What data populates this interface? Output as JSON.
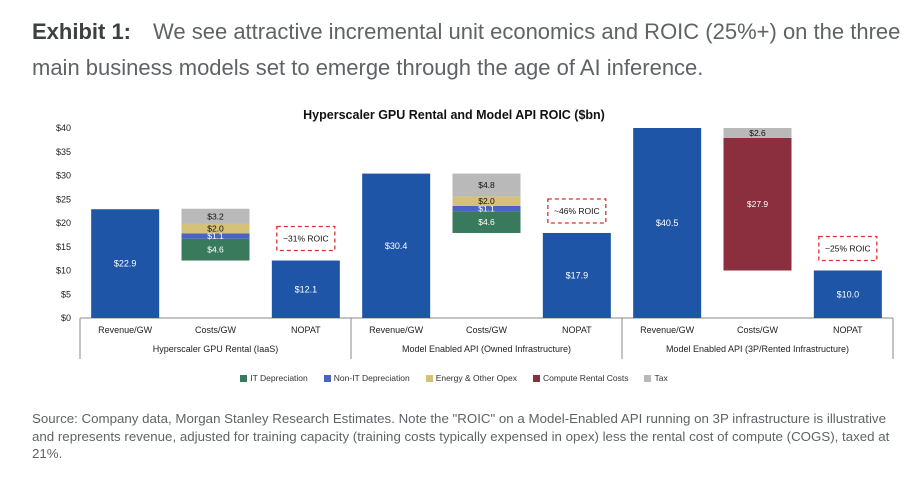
{
  "header": {
    "exhibit_label": "Exhibit 1:",
    "exhibit_text": "We see attractive incremental unit economics and ROIC (25%+) on the three main business models set to emerge through the age of AI inference."
  },
  "source_note": "Source: Company data, Morgan Stanley Research Estimates. Note the \"ROIC\" on a Model-Enabled API running on 3P infrastructure is illustrative and represents revenue, adjusted for training capacity (training costs typically expensed in opex) less the rental cost of compute (COGS), taxed at 21%.",
  "colors": {
    "blue": "#1f55a6",
    "it_depreciation": "#3a7a5c",
    "non_it_depreciation": "#4a63c4",
    "energy_opex": "#d4c17a",
    "compute_rental": "#8b2e3d",
    "tax": "#b9b9b9",
    "roic_box": "#d9342b"
  },
  "chart_data": {
    "type": "bar",
    "title": "Hyperscaler GPU Rental and Model API ROIC ($bn)",
    "ylim": [
      0,
      40
    ],
    "yticks": [
      "$0",
      "$5",
      "$10",
      "$15",
      "$20",
      "$25",
      "$30",
      "$35",
      "$40"
    ],
    "legend_position": "bottom",
    "legend": [
      {
        "name": "IT Depreciation",
        "color": "#3a7a5c"
      },
      {
        "name": "Non-IT Depreciation",
        "color": "#4a63c4"
      },
      {
        "name": "Energy & Other Opex",
        "color": "#d4c17a"
      },
      {
        "name": "Compute Rental Costs",
        "color": "#8b2e3d"
      },
      {
        "name": "Tax",
        "color": "#b9b9b9"
      }
    ],
    "groups": [
      {
        "name": "Hyperscaler GPU Rental (IaaS)",
        "roic_label": "~31% ROIC",
        "bars": [
          {
            "label": "Revenue/GW",
            "kind": "single",
            "value": 22.9,
            "value_label": "$22.9"
          },
          {
            "label": "Costs/GW",
            "kind": "stack",
            "base": 12.1,
            "segments": [
              {
                "name": "IT Depreciation",
                "value": 4.6,
                "value_label": "$4.6"
              },
              {
                "name": "Non-IT Depreciation",
                "value": 1.1,
                "value_label": "$1.1"
              },
              {
                "name": "Energy & Other Opex",
                "value": 2.0,
                "value_label": "$2.0"
              },
              {
                "name": "Tax",
                "value": 3.2,
                "value_label": "$3.2"
              }
            ]
          },
          {
            "label": "NOPAT",
            "kind": "single",
            "value": 12.1,
            "value_label": "$12.1"
          }
        ]
      },
      {
        "name": "Model Enabled API (Owned Infrastructure)",
        "roic_label": "~46% ROIC",
        "bars": [
          {
            "label": "Revenue/GW",
            "kind": "single",
            "value": 30.4,
            "value_label": "$30.4"
          },
          {
            "label": "Costs/GW",
            "kind": "stack",
            "base": 17.9,
            "segments": [
              {
                "name": "IT Depreciation",
                "value": 4.6,
                "value_label": "$4.6"
              },
              {
                "name": "Non-IT Depreciation",
                "value": 1.1,
                "value_label": "$1.1"
              },
              {
                "name": "Energy & Other Opex",
                "value": 2.0,
                "value_label": "$2.0"
              },
              {
                "name": "Tax",
                "value": 4.8,
                "value_label": "$4.8"
              }
            ]
          },
          {
            "label": "NOPAT",
            "kind": "single",
            "value": 17.9,
            "value_label": "$17.9"
          }
        ]
      },
      {
        "name": "Model Enabled API (3P/Rented Infrastructure)",
        "roic_label": "~25% ROIC",
        "bars": [
          {
            "label": "Revenue/GW",
            "kind": "single",
            "value": 40.5,
            "value_label": "$40.5"
          },
          {
            "label": "Costs/GW",
            "kind": "stack",
            "base": 10.0,
            "segments": [
              {
                "name": "Compute Rental Costs",
                "value": 27.9,
                "value_label": "$27.9"
              },
              {
                "name": "Tax",
                "value": 2.6,
                "value_label": "$2.6"
              }
            ]
          },
          {
            "label": "NOPAT",
            "kind": "single",
            "value": 10.0,
            "value_label": "$10.0"
          }
        ]
      }
    ]
  }
}
